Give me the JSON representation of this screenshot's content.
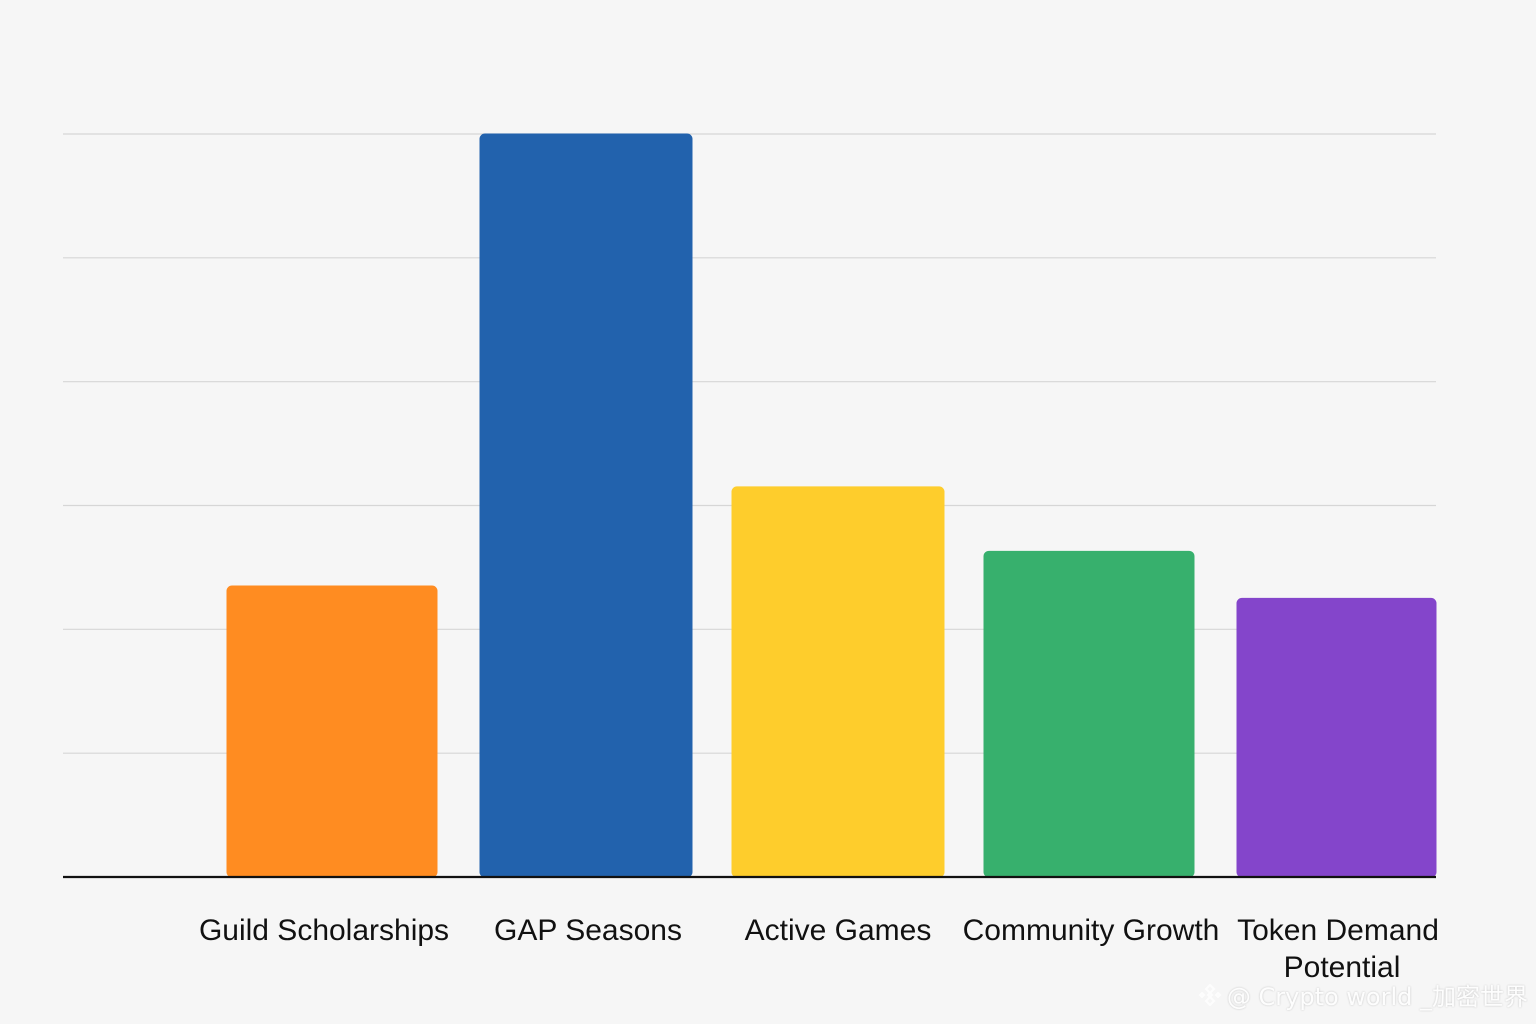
{
  "chart_data": {
    "type": "bar",
    "categories": [
      "Guild Scholarships",
      "GAP Seasons",
      "Active Games",
      "Community Growth",
      "Token Demand Potential"
    ],
    "values": [
      2.35,
      6.0,
      3.15,
      2.63,
      2.25
    ],
    "colors": [
      "#ff8c21",
      "#2262ad",
      "#fecd2c",
      "#37b06d",
      "#8445cb"
    ],
    "title": "",
    "xlabel": "",
    "ylabel": "",
    "ylim": [
      0,
      6
    ],
    "grid": true,
    "show_y_tick_labels": false,
    "legend": "none"
  },
  "watermark": {
    "icon": "binance-logo-icon",
    "text": "@ Crypto world _加密世界"
  }
}
